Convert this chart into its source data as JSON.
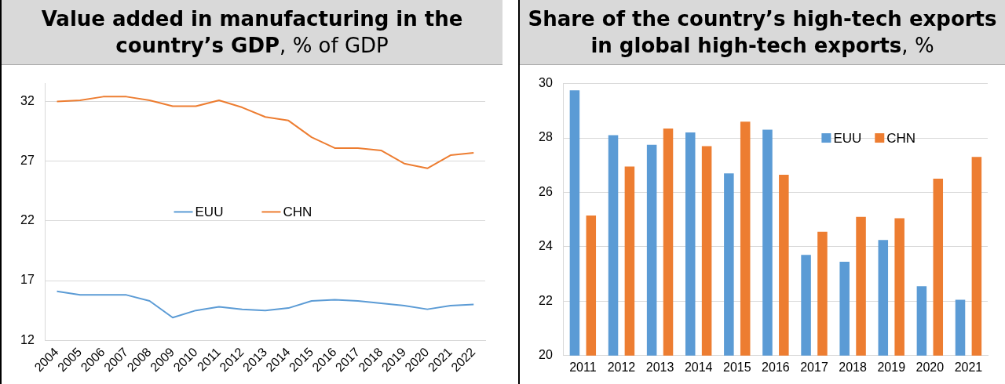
{
  "chart_data": [
    {
      "type": "line",
      "title": "Value added in manufacturing in the country’s GDP, % of GDP",
      "categories": [
        "2004",
        "2005",
        "2006",
        "2007",
        "2008",
        "2009",
        "2010",
        "2011",
        "2012",
        "2013",
        "2014",
        "2015",
        "2016",
        "2017",
        "2018",
        "2019",
        "2020",
        "2021",
        "2022"
      ],
      "series": [
        {
          "name": "EUU",
          "color": "#5b9bd5",
          "values": [
            16.1,
            15.8,
            15.8,
            15.8,
            15.3,
            13.9,
            14.5,
            14.8,
            14.6,
            14.5,
            14.7,
            15.3,
            15.4,
            15.3,
            15.1,
            14.9,
            14.6,
            14.9,
            15.0
          ]
        },
        {
          "name": "CHN",
          "color": "#ed7d31",
          "values": [
            32.0,
            32.1,
            32.4,
            32.4,
            32.1,
            31.6,
            31.6,
            32.1,
            31.5,
            30.7,
            30.4,
            29.0,
            28.1,
            28.1,
            27.9,
            26.8,
            26.4,
            27.5,
            27.7
          ]
        }
      ],
      "ylim": [
        12,
        33.5
      ],
      "yticks": [
        12,
        17,
        22,
        27,
        32
      ],
      "grid": "y",
      "legend": "center",
      "marker": "none",
      "line_style": "solid"
    },
    {
      "type": "bar",
      "title": "Share of the country’s high-tech exports in global high-tech exports, %",
      "categories": [
        "2011",
        "2012",
        "2013",
        "2014",
        "2015",
        "2016",
        "2017",
        "2018",
        "2019",
        "2020",
        "2021"
      ],
      "series": [
        {
          "name": "EUU",
          "color": "#5b9bd5",
          "values": [
            29.75,
            28.1,
            27.75,
            28.2,
            26.7,
            28.3,
            23.7,
            23.45,
            24.25,
            22.55,
            22.05
          ]
        },
        {
          "name": "CHN",
          "color": "#ed7d31",
          "values": [
            25.15,
            26.95,
            28.35,
            27.7,
            28.6,
            26.65,
            24.55,
            25.1,
            25.05,
            26.5,
            27.3
          ]
        }
      ],
      "ylim": [
        20,
        30
      ],
      "yticks": [
        20,
        22,
        24,
        26,
        28,
        30
      ],
      "grid": "y",
      "legend": "top right"
    }
  ]
}
